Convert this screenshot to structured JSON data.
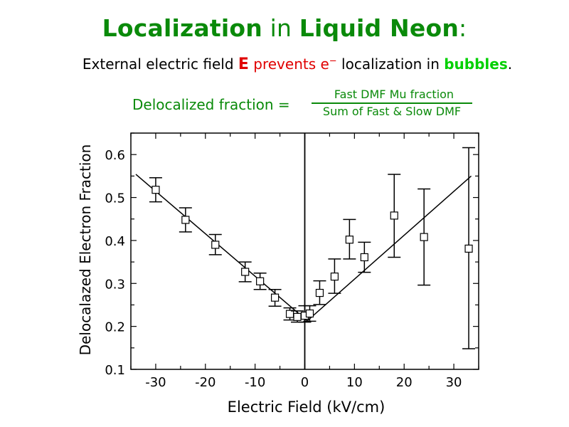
{
  "slide": {
    "title_part1": "Localization",
    "title_part2": " in ",
    "title_part3": "Liquid Neon",
    "title_part4": ":",
    "subtitle_pre": "External electric field ",
    "subtitle_E": "E",
    "subtitle_prevents": " prevents e",
    "subtitle_sup": "−",
    "subtitle_mid": " localization in ",
    "subtitle_bubbles": "bubbles",
    "subtitle_end": ".",
    "formula_lhs": "Delocalized fraction =",
    "formula_num": "Fast DMF Mu fraction",
    "formula_den": "Sum of Fast & Slow DMF"
  },
  "colors": {
    "title_green": "#0a8a0a",
    "highlight_red": "#e00000",
    "bubbles_green": "#00d000"
  },
  "chart_data": {
    "type": "scatter",
    "xlabel": "Electric Field (kV/cm)",
    "ylabel": "Delocalazed Electron Fraction",
    "xlim": [
      -35,
      35
    ],
    "ylim": [
      0.1,
      0.65
    ],
    "xticks": [
      -30,
      -20,
      -10,
      0,
      10,
      20,
      30
    ],
    "xtick_labels": [
      "-30",
      "-20",
      "-10",
      "0",
      "10",
      "20",
      "30"
    ],
    "yticks": [
      0.1,
      0.2,
      0.3,
      0.4,
      0.5,
      0.6
    ],
    "ytick_labels": [
      "0.1",
      "0.2",
      "0.3",
      "0.4",
      "0.5",
      "0.6"
    ],
    "grid": false,
    "zero_line_x": 0,
    "points": [
      {
        "x": -30.0,
        "y": 0.518,
        "err_lo": 0.49,
        "err_hi": 0.546
      },
      {
        "x": -24.0,
        "y": 0.448,
        "err_lo": 0.42,
        "err_hi": 0.476
      },
      {
        "x": -18.0,
        "y": 0.39,
        "err_lo": 0.367,
        "err_hi": 0.414
      },
      {
        "x": -12.0,
        "y": 0.327,
        "err_lo": 0.304,
        "err_hi": 0.35
      },
      {
        "x": -9.0,
        "y": 0.305,
        "err_lo": 0.286,
        "err_hi": 0.324
      },
      {
        "x": -6.0,
        "y": 0.267,
        "err_lo": 0.247,
        "err_hi": 0.286
      },
      {
        "x": -3.0,
        "y": 0.229,
        "err_lo": 0.215,
        "err_hi": 0.243
      },
      {
        "x": -1.5,
        "y": 0.222,
        "err_lo": 0.21,
        "err_hi": 0.236
      },
      {
        "x": 0.0,
        "y": 0.225,
        "err_lo": 0.21,
        "err_hi": 0.248
      },
      {
        "x": 1.0,
        "y": 0.23,
        "err_lo": 0.212,
        "err_hi": 0.248
      },
      {
        "x": 3.0,
        "y": 0.278,
        "err_lo": 0.251,
        "err_hi": 0.306
      },
      {
        "x": 6.0,
        "y": 0.316,
        "err_lo": 0.277,
        "err_hi": 0.357
      },
      {
        "x": 9.0,
        "y": 0.402,
        "err_lo": 0.357,
        "err_hi": 0.449
      },
      {
        "x": 12.0,
        "y": 0.361,
        "err_lo": 0.326,
        "err_hi": 0.396
      },
      {
        "x": 18.0,
        "y": 0.458,
        "err_lo": 0.361,
        "err_hi": 0.554
      },
      {
        "x": 24.0,
        "y": 0.408,
        "err_lo": 0.296,
        "err_hi": 0.52
      },
      {
        "x": 33.0,
        "y": 0.381,
        "err_lo": 0.148,
        "err_hi": 0.616
      }
    ],
    "fit_lines": [
      {
        "x": [
          -34.0,
          0.5
        ],
        "y": [
          0.554,
          0.213
        ]
      },
      {
        "x": [
          0.5,
          33.5
        ],
        "y": [
          0.213,
          0.55
        ]
      }
    ]
  }
}
